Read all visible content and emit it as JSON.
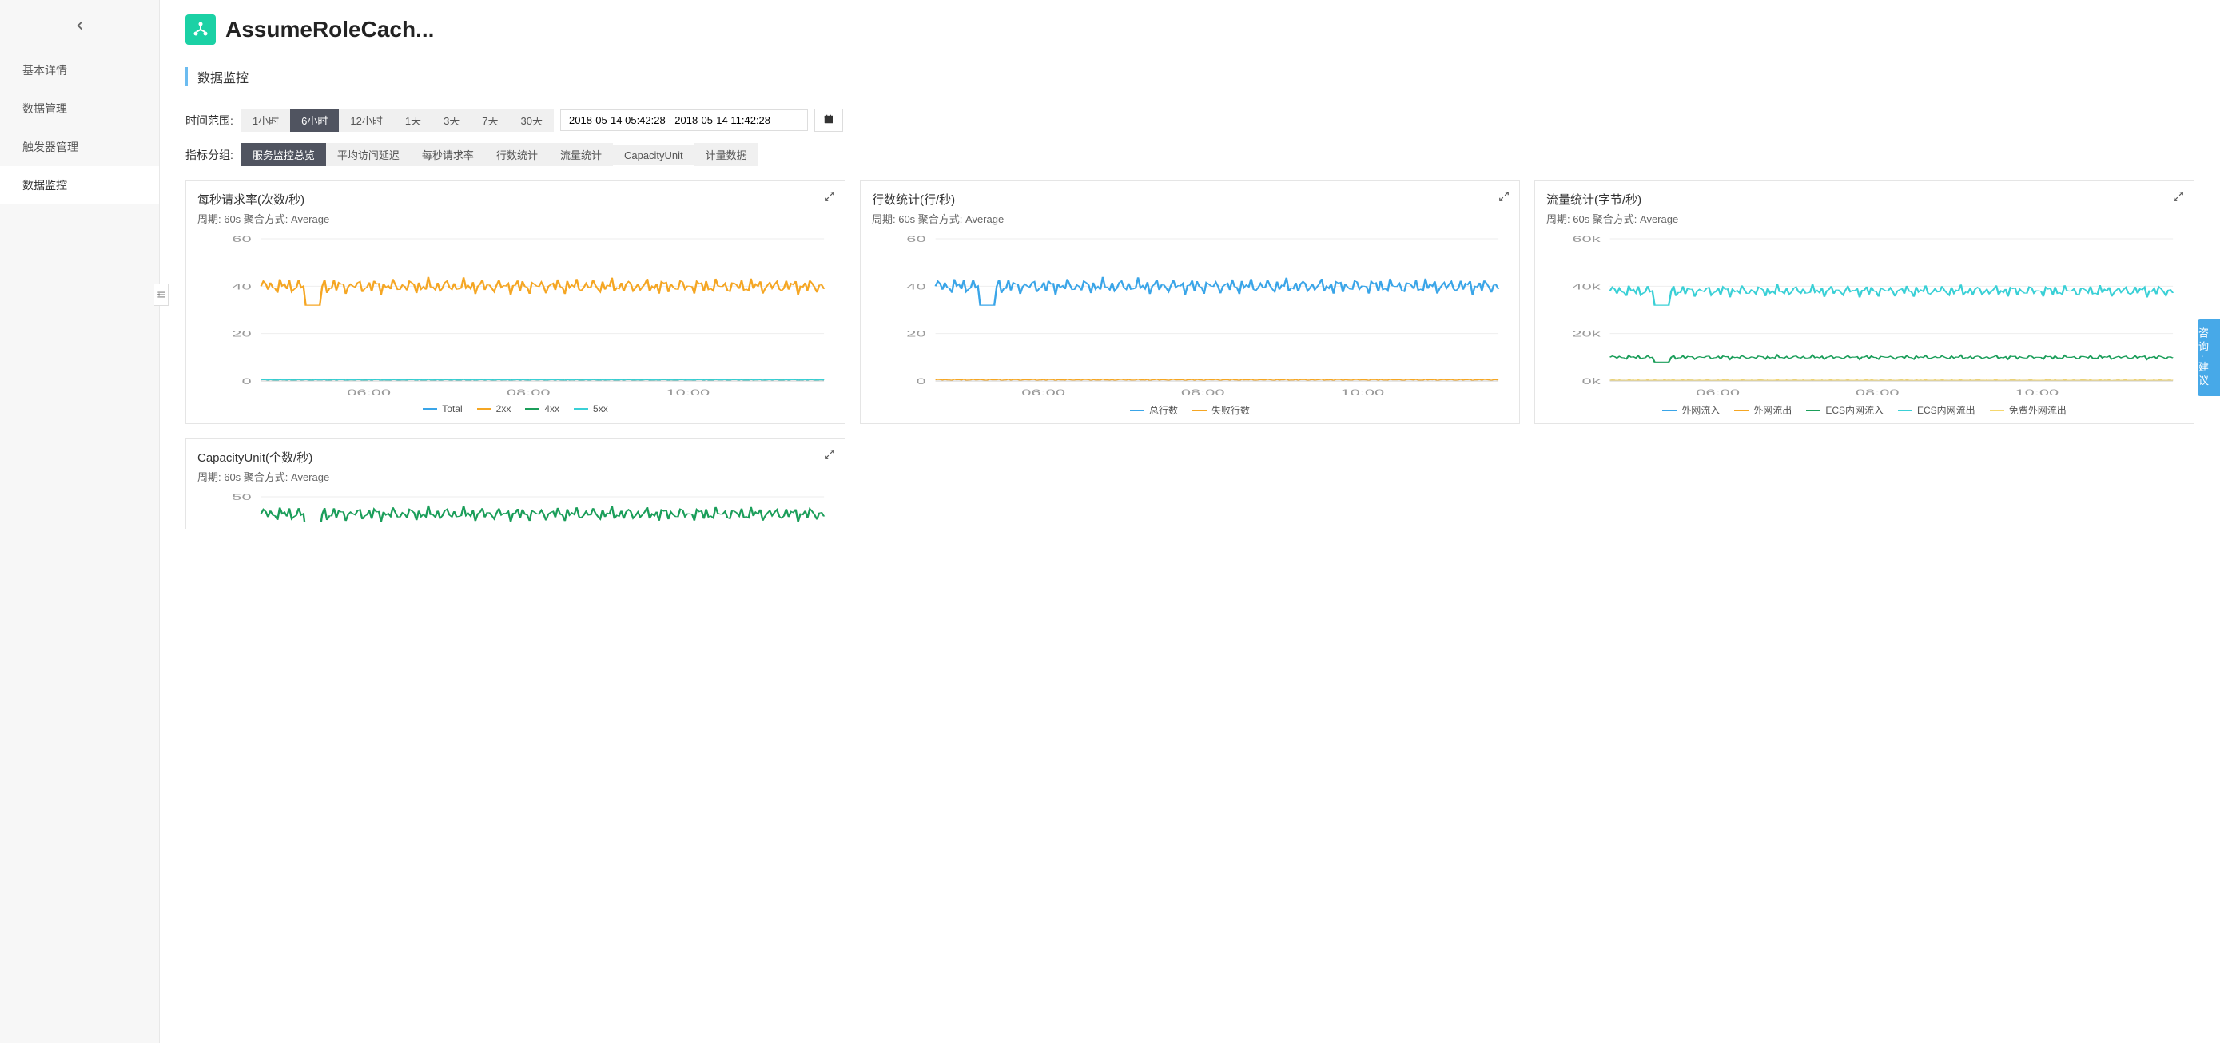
{
  "sidebar": {
    "items": [
      {
        "label": "基本详情"
      },
      {
        "label": "数据管理"
      },
      {
        "label": "触发器管理"
      },
      {
        "label": "数据监控"
      }
    ],
    "activeIndex": 3
  },
  "header": {
    "title": "AssumeRoleCach..."
  },
  "section_title": "数据监控",
  "time_range": {
    "label": "时间范围:",
    "options": [
      "1小时",
      "6小时",
      "12小时",
      "1天",
      "3天",
      "7天",
      "30天"
    ],
    "activeIndex": 1,
    "value": "2018-05-14 05:42:28 - 2018-05-14 11:42:28"
  },
  "metric_group": {
    "label": "指标分组:",
    "options": [
      "服务监控总览",
      "平均访问延迟",
      "每秒请求率",
      "行数统计",
      "流量统计",
      "CapacityUnit",
      "计量数据"
    ],
    "activeIndex": 0
  },
  "charts": [
    {
      "title": "每秒请求率(次数/秒)",
      "subtitle": "周期: 60s  聚合方式: Average",
      "type": "line",
      "x_ticks": [
        "06:00",
        "08:00",
        "10:00"
      ],
      "y_ticks": [
        0,
        20,
        40,
        60
      ],
      "ylim": [
        0,
        60
      ],
      "series": [
        {
          "name": "Total",
          "color": "#3aa5e8",
          "value": 0.5,
          "jitter": 0.3
        },
        {
          "name": "2xx",
          "color": "#f5a623",
          "value": 40,
          "jitter": 4
        },
        {
          "name": "4xx",
          "color": "#1b9e5a",
          "value": 0.5,
          "jitter": 0.2
        },
        {
          "name": "5xx",
          "color": "#3ad0d6",
          "value": 0.5,
          "jitter": 0.2
        }
      ],
      "grid_color": "#eeeeee",
      "axis_color": "#cccccc",
      "text_color": "#999999"
    },
    {
      "title": "行数统计(行/秒)",
      "subtitle": "周期: 60s  聚合方式: Average",
      "type": "line",
      "x_ticks": [
        "06:00",
        "08:00",
        "10:00"
      ],
      "y_ticks": [
        0,
        20,
        40,
        60
      ],
      "ylim": [
        0,
        60
      ],
      "series": [
        {
          "name": "总行数",
          "color": "#3aa5e8",
          "value": 40,
          "jitter": 4
        },
        {
          "name": "失败行数",
          "color": "#f5a623",
          "value": 0.5,
          "jitter": 0.3
        }
      ],
      "grid_color": "#eeeeee",
      "axis_color": "#cccccc",
      "text_color": "#999999"
    },
    {
      "title": "流量统计(字节/秒)",
      "subtitle": "周期: 60s  聚合方式: Average",
      "type": "line",
      "x_ticks": [
        "06:00",
        "08:00",
        "10:00"
      ],
      "y_ticks": [
        "0k",
        "20k",
        "40k",
        "60k"
      ],
      "ylim": [
        0,
        60
      ],
      "series": [
        {
          "name": "外网流入",
          "color": "#3aa5e8",
          "value": 0.3,
          "jitter": 0.2
        },
        {
          "name": "外网流出",
          "color": "#f5a623",
          "value": 0.3,
          "jitter": 0.2
        },
        {
          "name": "ECS内网流入",
          "color": "#1b9e5a",
          "value": 10,
          "jitter": 1
        },
        {
          "name": "ECS内网流出",
          "color": "#3ad0d6",
          "value": 38,
          "jitter": 3
        },
        {
          "name": "免费外网流出",
          "color": "#f5d76e",
          "value": 0.3,
          "jitter": 0.2
        }
      ],
      "grid_color": "#eeeeee",
      "axis_color": "#cccccc",
      "text_color": "#999999"
    }
  ],
  "chart4": {
    "title": "CapacityUnit(个数/秒)",
    "subtitle": "周期: 60s  聚合方式: Average",
    "type": "line",
    "x_ticks": [],
    "y_ticks": [
      50
    ],
    "ylim": [
      0,
      50
    ],
    "series": [
      {
        "name": "",
        "color": "#1b9e5a",
        "value": 44,
        "jitter": 3
      }
    ],
    "grid_color": "#eeeeee",
    "axis_color": "#cccccc",
    "text_color": "#999999",
    "truncated": true
  },
  "help_float": "咨询·建议",
  "colors": {
    "brand": "#1bd1a5",
    "pill_active_bg": "#505460",
    "section_accent": "#6cbcf0",
    "help_bg": "#47a9e8"
  }
}
